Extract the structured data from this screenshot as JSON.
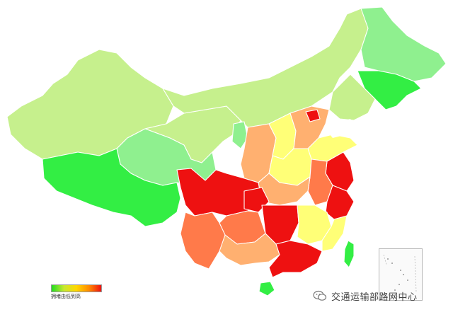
{
  "legend": {
    "label": "拥堵由低到高",
    "gradient": [
      "#22dd22",
      "#c8e830",
      "#ffd700",
      "#ff8c00",
      "#ee1111"
    ]
  },
  "watermark": {
    "text": "交通运输部路网中心",
    "icon": "wechat-icon"
  },
  "colors": {
    "level_green": "#33ee44",
    "level_mint": "#8ff08f",
    "level_lightgreen": "#c6f08d",
    "level_yellow": "#ffff77",
    "level_peach": "#ffb070",
    "level_orange": "#ff7a4a",
    "level_red": "#ee1111",
    "sea": "#e8f0ff"
  }
}
